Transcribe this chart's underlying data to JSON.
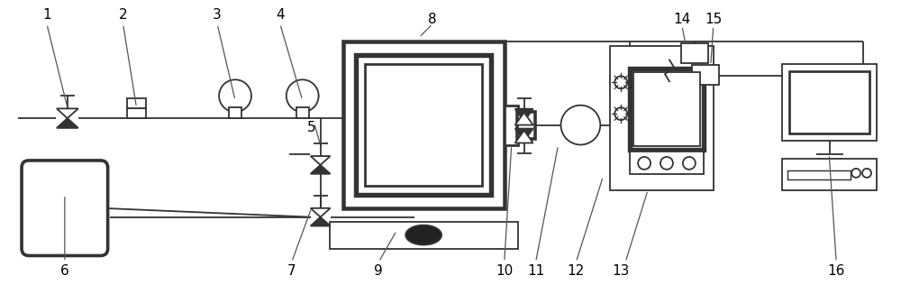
{
  "fig_width": 10.0,
  "fig_height": 3.26,
  "dpi": 100,
  "bg_color": "#ffffff",
  "lc": "#333333",
  "lw": 1.3,
  "label_fontsize": 11
}
